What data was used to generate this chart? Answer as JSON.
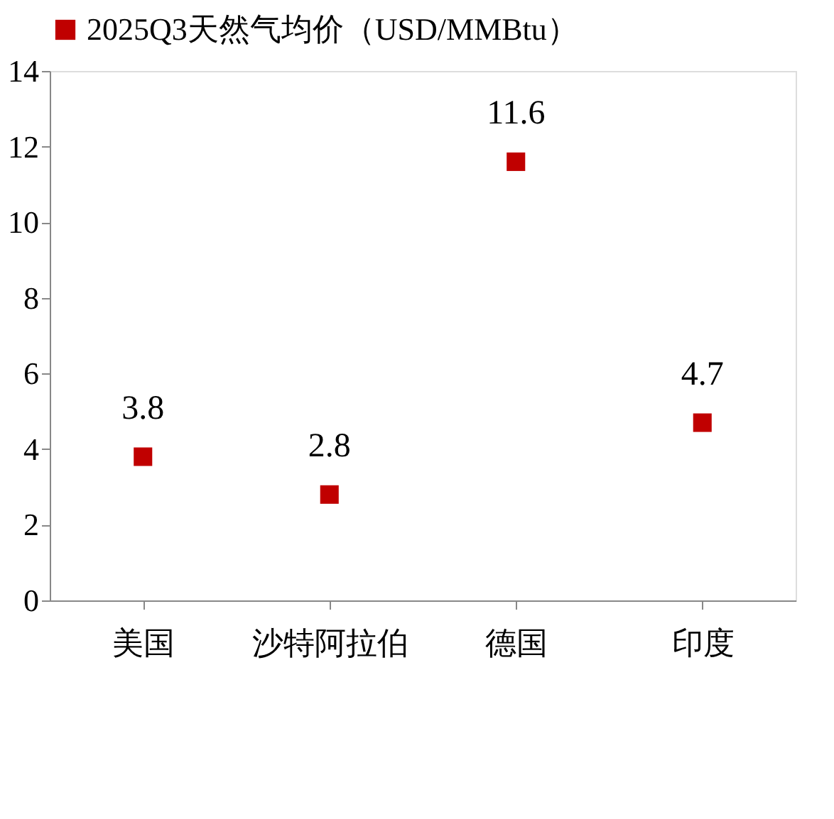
{
  "chart_data": {
    "type": "scatter",
    "categories": [
      "美国",
      "沙特阿拉伯",
      "德国",
      "印度"
    ],
    "series": [
      {
        "name": "2025Q3天然气均价（USD/MMBtu）",
        "color": "#c00000",
        "values": [
          3.8,
          2.8,
          11.6,
          4.7
        ]
      }
    ],
    "ylim": [
      0,
      14
    ],
    "yticks": [
      0,
      2,
      4,
      6,
      8,
      10,
      12,
      14
    ],
    "marker": "square",
    "data_labels": true,
    "legend": "top",
    "grid": false
  }
}
